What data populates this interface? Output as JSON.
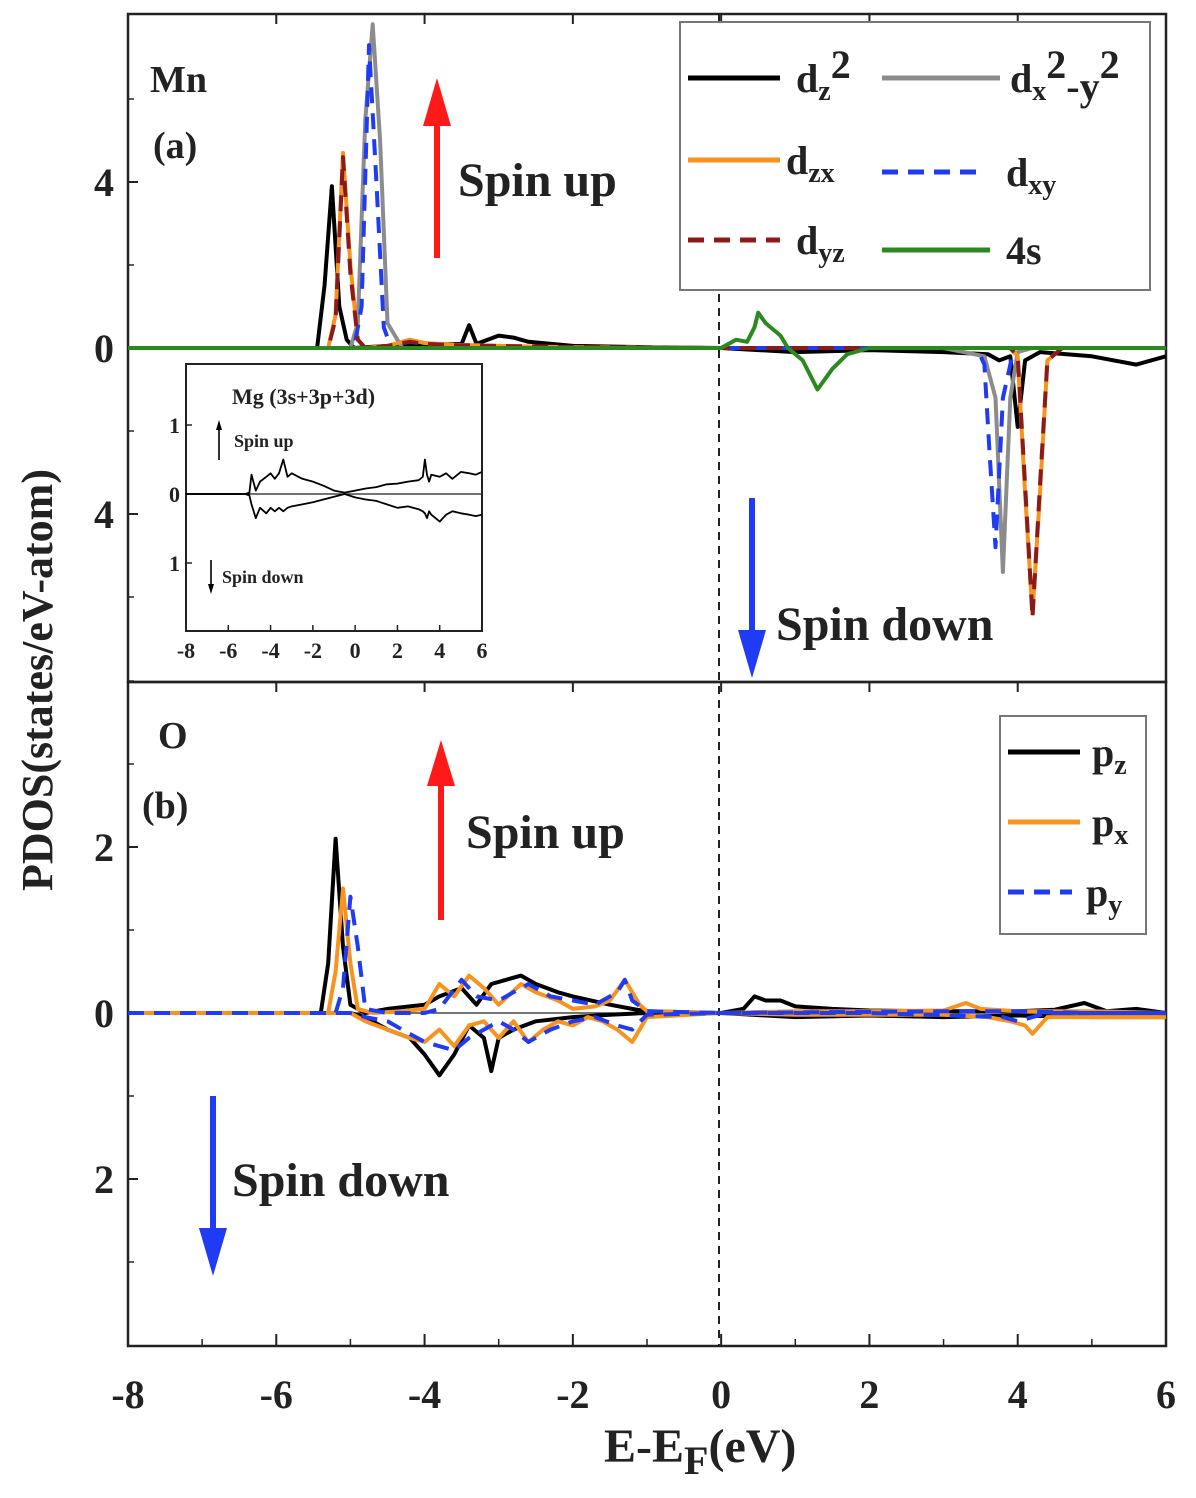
{
  "chart_data": [
    {
      "panel": "(a)",
      "element": "Mn",
      "type": "line",
      "title": "Mn",
      "xlabel": "E-EF(eV)",
      "ylabel": "PDOS(states/eV-atom)",
      "xlim": [
        -8,
        6
      ],
      "ylim": [
        -8,
        8
      ],
      "y_tick_labels": [
        "4",
        "0",
        "4"
      ],
      "y_tick_values": [
        4,
        0,
        -4
      ],
      "annotations": {
        "up": "Spin up",
        "down": "Spin down"
      },
      "legend_position": "top-right",
      "series": [
        {
          "name": "dz2",
          "legend_html": "d<tspan dy='8' font-size='28'>z</tspan><tspan dy='-22'>2</tspan>",
          "color": "#000000",
          "dash": "",
          "width": 4,
          "x": [
            -8,
            -5.45,
            -5.35,
            -5.25,
            -5.15,
            -5.05,
            -4.95,
            -4.8,
            -4.5,
            -4.0,
            -3.5,
            -3.4,
            -3.3,
            -3.0,
            -2.8,
            -2.6,
            -2.0,
            -1.0,
            0.0,
            1.0,
            2.0,
            3.0,
            3.6,
            3.75,
            3.9,
            4.0,
            4.1,
            4.3,
            5.0,
            5.6,
            6.0
          ],
          "y": [
            0,
            0,
            1.5,
            3.9,
            1.0,
            0.2,
            0,
            0.02,
            0.05,
            0.08,
            0.1,
            0.55,
            0.1,
            0.3,
            0.25,
            0.15,
            0.05,
            0.02,
            0,
            -0.1,
            -0.05,
            -0.1,
            -0.15,
            -0.3,
            -0.2,
            -1.9,
            -0.3,
            -0.1,
            -0.2,
            -0.4,
            -0.2
          ]
        },
        {
          "name": "dx2-y2",
          "legend_html": "d<tspan dy='8' font-size='28'>x</tspan><tspan dy='-22'>2</tspan><tspan dy='22'>-y</tspan><tspan dy='-22'>2</tspan>",
          "color": "#8c8c8c",
          "dash": "",
          "width": 4,
          "x": [
            -8,
            -5.0,
            -4.9,
            -4.8,
            -4.7,
            -4.6,
            -4.5,
            -4.3,
            -3.0,
            0.0,
            3.0,
            3.55,
            3.7,
            3.8,
            3.9,
            4.0,
            4.2,
            5.0,
            6.0
          ],
          "y": [
            0,
            0,
            0.6,
            5.5,
            7.8,
            5.0,
            0.6,
            0,
            0,
            0,
            0,
            -0.2,
            -1.2,
            -5.4,
            -1.2,
            -0.1,
            0,
            0,
            0
          ]
        },
        {
          "name": "dzx",
          "legend_html": "d<tspan dy='8' font-size='28'>zx</tspan>",
          "color": "#f7931e",
          "dash": "",
          "width": 4,
          "x": [
            -8,
            -5.3,
            -5.2,
            -5.1,
            -5.0,
            -4.9,
            -4.8,
            -4.5,
            -4.2,
            -4.0,
            -3.6,
            -3.0,
            -2.0,
            0.0,
            3.9,
            4.0,
            4.1,
            4.2,
            4.3,
            4.4,
            4.6,
            6.0
          ],
          "y": [
            0,
            0,
            0.8,
            4.7,
            2.0,
            0.2,
            0,
            0.05,
            0.2,
            0.12,
            0.08,
            0.05,
            0.02,
            0,
            0,
            -0.2,
            -3.5,
            -6.4,
            -3.5,
            -0.3,
            0,
            0
          ]
        },
        {
          "name": "dxy",
          "legend_html": "d<tspan dy='8' font-size='28'>xy</tspan>",
          "color": "#1f3bf5",
          "dash": "16,10",
          "width": 4,
          "x": [
            -8,
            -4.95,
            -4.85,
            -4.75,
            -4.65,
            -4.55,
            -4.45,
            -3.0,
            0.0,
            3.45,
            3.55,
            3.62,
            3.7,
            3.8,
            3.95,
            6.0
          ],
          "y": [
            0,
            0,
            1.0,
            7.3,
            4.0,
            0.5,
            0,
            0,
            0,
            0,
            -0.4,
            -2.5,
            -4.8,
            -1.2,
            0,
            0
          ]
        },
        {
          "name": "dyz",
          "legend_html": "d<tspan dy='8' font-size='28'>yz</tspan>",
          "color": "#8b1a1a",
          "dash": "16,10",
          "width": 4,
          "x": [
            -8,
            -5.3,
            -5.2,
            -5.1,
            -5.0,
            -4.9,
            -4.8,
            -4.5,
            -4.2,
            -4.0,
            -3.6,
            -3.0,
            -2.0,
            0.0,
            3.9,
            4.0,
            4.1,
            4.2,
            4.3,
            4.4,
            4.6,
            6.0
          ],
          "y": [
            0,
            0,
            0.7,
            4.6,
            1.8,
            0.2,
            0,
            0.05,
            0.15,
            0.1,
            0.07,
            0.05,
            0.02,
            0,
            0,
            -0.2,
            -3.3,
            -6.5,
            -3.3,
            -0.3,
            0,
            0
          ]
        },
        {
          "name": "4s",
          "legend_html": "4s",
          "color": "#2a8a20",
          "dash": "",
          "width": 4,
          "x": [
            -8,
            -3.0,
            0.0,
            0.2,
            0.35,
            0.45,
            0.5,
            0.6,
            0.8,
            0.9,
            1.1,
            1.3,
            1.5,
            1.7,
            2.0,
            6.0
          ],
          "y": [
            0,
            0,
            0,
            0.2,
            0.15,
            0.5,
            0.85,
            0.6,
            0.3,
            0.0,
            -0.3,
            -1.0,
            -0.5,
            -0.15,
            0,
            0
          ]
        }
      ],
      "inset": {
        "title": "Mg (3s+3p+3d)",
        "xlim": [
          -8,
          6
        ],
        "ylim": [
          -2,
          2
        ],
        "x_tick_labels": [
          "-8",
          "-6",
          "-4",
          "-2",
          "0",
          "2",
          "4",
          "6"
        ],
        "x_tick_values": [
          -8,
          -6,
          -4,
          -2,
          0,
          2,
          4,
          6
        ],
        "y_tick_labels": [
          "1",
          "0",
          "1"
        ],
        "y_tick_values": [
          1,
          0,
          -1
        ],
        "annotations": {
          "up": "Spin up",
          "down": "Spin down"
        },
        "series": [
          {
            "name": "Mg up",
            "color": "#000000",
            "x": [
              -8,
              -5.2,
              -5.0,
              -4.9,
              -4.7,
              -4.5,
              -4.2,
              -4.0,
              -3.8,
              -3.6,
              -3.4,
              -3.2,
              -3.0,
              -2.5,
              -2.0,
              -1.5,
              -1.0,
              -0.5,
              0.0,
              0.5,
              1.0,
              1.5,
              2.0,
              2.5,
              3.0,
              3.2,
              3.3,
              3.4,
              3.5,
              3.6,
              4.0,
              4.3,
              4.6,
              5.0,
              5.4,
              5.7,
              6.0
            ],
            "y": [
              0,
              0,
              0.02,
              0.28,
              0.05,
              0.18,
              0.25,
              0.3,
              0.22,
              0.3,
              0.5,
              0.25,
              0.3,
              0.22,
              0.18,
              0.12,
              0.05,
              0.02,
              0.05,
              0.08,
              0.1,
              0.14,
              0.15,
              0.18,
              0.2,
              0.25,
              0.5,
              0.28,
              0.18,
              0.28,
              0.25,
              0.3,
              0.22,
              0.32,
              0.3,
              0.28,
              0.32
            ]
          },
          {
            "name": "Mg down",
            "color": "#000000",
            "x": [
              -8,
              -5.2,
              -5.0,
              -4.9,
              -4.7,
              -4.5,
              -4.2,
              -4.0,
              -3.8,
              -3.6,
              -3.4,
              -3.2,
              -3.0,
              -2.5,
              -2.0,
              -1.5,
              -1.0,
              -0.5,
              0.0,
              0.5,
              1.0,
              1.5,
              2.0,
              2.5,
              3.0,
              3.2,
              3.3,
              3.4,
              3.5,
              3.6,
              4.0,
              4.3,
              4.6,
              5.0,
              5.4,
              5.7,
              6.0
            ],
            "y": [
              0,
              0,
              -0.02,
              -0.15,
              -0.35,
              -0.2,
              -0.28,
              -0.2,
              -0.25,
              -0.2,
              -0.25,
              -0.2,
              -0.18,
              -0.15,
              -0.12,
              -0.08,
              -0.04,
              0.0,
              -0.05,
              -0.08,
              -0.1,
              -0.15,
              -0.2,
              -0.18,
              -0.22,
              -0.25,
              -0.28,
              -0.35,
              -0.25,
              -0.3,
              -0.4,
              -0.3,
              -0.25,
              -0.28,
              -0.3,
              -0.32,
              -0.3
            ]
          }
        ]
      }
    },
    {
      "panel": "(b)",
      "element": "O",
      "type": "line",
      "title": "O",
      "xlim": [
        -8,
        6
      ],
      "ylim": [
        -4,
        4
      ],
      "y_tick_labels": [
        "2",
        "0",
        "2"
      ],
      "y_tick_values": [
        2,
        0,
        -2
      ],
      "annotations": {
        "up": "Spin up",
        "down": "Spin down"
      },
      "legend_position": "top-right",
      "x_tick_labels": [
        "-8",
        "-6",
        "-4",
        "-2",
        "0",
        "2",
        "4",
        "6"
      ],
      "x_tick_values": [
        -8,
        -6,
        -4,
        -2,
        0,
        2,
        4,
        6
      ],
      "series": [
        {
          "name": "pz up",
          "legend_html": "p<tspan dy='8' font-size='28'>z</tspan>",
          "color": "#000000",
          "dash": "",
          "width": 4,
          "x": [
            -8,
            -5.4,
            -5.3,
            -5.2,
            -5.1,
            -5.0,
            -4.8,
            -4.5,
            -4.0,
            -3.8,
            -3.5,
            -3.3,
            -3.1,
            -2.9,
            -2.7,
            -2.5,
            -2.2,
            -2.0,
            -1.5,
            -1.2,
            -1.0,
            0.0,
            0.3,
            0.45,
            0.6,
            0.8,
            1.0,
            1.5,
            2.0,
            3.0,
            4.0,
            4.5,
            4.9,
            5.2,
            5.6,
            6.0
          ],
          "y": [
            0,
            0,
            0.6,
            2.1,
            0.8,
            0.1,
            0.0,
            0.05,
            0.1,
            0.2,
            0.3,
            0.1,
            0.35,
            0.4,
            0.45,
            0.35,
            0.25,
            0.2,
            0.1,
            0.05,
            0.02,
            0,
            0.05,
            0.2,
            0.15,
            0.15,
            0.08,
            0.05,
            0.03,
            0.02,
            0.02,
            0.04,
            0.12,
            0.02,
            0.05,
            0.0
          ]
        },
        {
          "name": "pz down",
          "color": "#000000",
          "dash": "",
          "width": 4,
          "x": [
            -8,
            -5.0,
            -4.8,
            -4.5,
            -4.2,
            -4.0,
            -3.8,
            -3.6,
            -3.4,
            -3.2,
            -3.1,
            -3.0,
            -2.8,
            -2.5,
            -2.0,
            -1.5,
            -1.0,
            0.0,
            1.0,
            2.0,
            3.0,
            4.0,
            5.0,
            6.0
          ],
          "y": [
            0,
            0,
            -0.05,
            -0.2,
            -0.3,
            -0.5,
            -0.75,
            -0.5,
            -0.15,
            -0.3,
            -0.7,
            -0.3,
            -0.2,
            -0.1,
            -0.05,
            -0.02,
            0,
            0,
            -0.05,
            -0.03,
            -0.05,
            -0.03,
            -0.05,
            -0.05
          ]
        },
        {
          "name": "px up",
          "legend_html": "p<tspan dy='8' font-size='28'>x</tspan>",
          "color": "#f7931e",
          "dash": "",
          "width": 4,
          "x": [
            -8,
            -5.3,
            -5.2,
            -5.1,
            -5.0,
            -4.9,
            -4.7,
            -4.3,
            -4.0,
            -3.8,
            -3.6,
            -3.4,
            -3.2,
            -3.0,
            -2.7,
            -2.5,
            -2.2,
            -2.0,
            -1.7,
            -1.5,
            -1.3,
            -1.1,
            -1.0,
            0.0,
            1.0,
            2.0,
            3.0,
            3.3,
            3.5,
            4.0,
            5.0,
            6.0
          ],
          "y": [
            0,
            0,
            0.5,
            1.5,
            0.6,
            0.05,
            0.0,
            0.02,
            0.05,
            0.35,
            0.2,
            0.45,
            0.3,
            0.1,
            0.35,
            0.25,
            0.15,
            0.05,
            0.08,
            0.15,
            0.4,
            0.1,
            0.02,
            0,
            0.02,
            0.02,
            0.03,
            0.12,
            0.05,
            0.02,
            0.02,
            0.0
          ]
        },
        {
          "name": "px down",
          "color": "#f7931e",
          "dash": "",
          "width": 4,
          "x": [
            -8,
            -5.0,
            -4.8,
            -4.5,
            -4.2,
            -4.0,
            -3.8,
            -3.6,
            -3.4,
            -3.2,
            -3.0,
            -2.8,
            -2.6,
            -2.4,
            -2.2,
            -2.0,
            -1.8,
            -1.6,
            -1.4,
            -1.2,
            -1.0,
            0.0,
            1.0,
            2.0,
            3.0,
            3.6,
            3.9,
            4.1,
            4.2,
            4.4,
            5.0,
            6.0
          ],
          "y": [
            0,
            0,
            -0.1,
            -0.2,
            -0.3,
            -0.35,
            -0.2,
            -0.4,
            -0.15,
            -0.1,
            -0.3,
            -0.1,
            -0.35,
            -0.2,
            -0.1,
            -0.15,
            -0.05,
            -0.1,
            -0.2,
            -0.35,
            -0.05,
            0,
            -0.02,
            -0.02,
            -0.02,
            -0.05,
            -0.1,
            -0.15,
            -0.25,
            -0.05,
            -0.05,
            -0.05
          ]
        },
        {
          "name": "py up",
          "legend_html": "p<tspan dy='8' font-size='28'>y</tspan>",
          "color": "#1f3bf5",
          "dash": "16,10",
          "width": 4,
          "x": [
            -8,
            -5.2,
            -5.1,
            -5.0,
            -4.9,
            -4.8,
            -4.5,
            -4.0,
            -3.8,
            -3.5,
            -3.3,
            -3.0,
            -2.6,
            -2.3,
            -2.0,
            -1.7,
            -1.4,
            -1.3,
            -1.2,
            -1.0,
            0.0,
            3.0,
            4.0,
            5.0,
            6.0
          ],
          "y": [
            0,
            0,
            0.3,
            1.4,
            0.8,
            0.05,
            0.0,
            0.0,
            0.05,
            0.4,
            0.2,
            0.15,
            0.35,
            0.2,
            0.15,
            0.1,
            0.25,
            0.4,
            0.15,
            0.02,
            0,
            0.02,
            0.02,
            0.0,
            0.0
          ]
        },
        {
          "name": "py down",
          "color": "#1f3bf5",
          "dash": "16,10",
          "width": 4,
          "x": [
            -8,
            -5.0,
            -4.8,
            -4.5,
            -4.2,
            -4.0,
            -3.8,
            -3.6,
            -3.4,
            -3.2,
            -3.0,
            -2.8,
            -2.6,
            -2.3,
            -2.0,
            -1.7,
            -1.4,
            -1.2,
            -1.0,
            0.0,
            2.0,
            3.8,
            4.0,
            4.2,
            4.4,
            6.0
          ],
          "y": [
            0,
            0,
            -0.05,
            -0.1,
            -0.25,
            -0.35,
            -0.4,
            -0.45,
            -0.3,
            -0.2,
            -0.1,
            -0.2,
            -0.35,
            -0.2,
            -0.1,
            -0.05,
            -0.15,
            -0.2,
            -0.02,
            0,
            0,
            -0.05,
            -0.1,
            -0.05,
            0,
            0
          ]
        }
      ]
    }
  ]
}
